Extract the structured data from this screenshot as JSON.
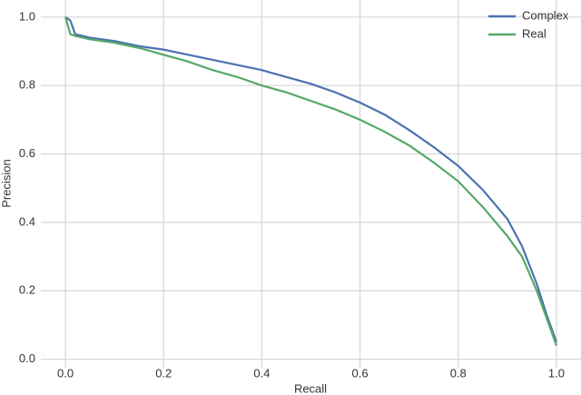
{
  "chart_data": {
    "type": "line",
    "x_label": "Recall",
    "y_label": "Precision",
    "x": [
      0,
      0.01,
      0.02,
      0.05,
      0.1,
      0.15,
      0.2,
      0.25,
      0.3,
      0.35,
      0.4,
      0.45,
      0.5,
      0.55,
      0.6,
      0.65,
      0.7,
      0.75,
      0.8,
      0.85,
      0.9,
      0.93,
      0.96,
      0.98,
      1.0
    ],
    "series": [
      {
        "name": "Complex",
        "color": "#4c72b0",
        "values": [
          1.0,
          0.99,
          0.95,
          0.94,
          0.93,
          0.915,
          0.905,
          0.89,
          0.875,
          0.86,
          0.845,
          0.825,
          0.805,
          0.78,
          0.75,
          0.715,
          0.67,
          0.62,
          0.565,
          0.495,
          0.41,
          0.33,
          0.22,
          0.13,
          0.05
        ]
      },
      {
        "name": "Real",
        "color": "#55a868",
        "values": [
          1.0,
          0.95,
          0.945,
          0.935,
          0.925,
          0.91,
          0.89,
          0.87,
          0.845,
          0.825,
          0.8,
          0.78,
          0.755,
          0.73,
          0.7,
          0.665,
          0.625,
          0.575,
          0.52,
          0.445,
          0.36,
          0.3,
          0.2,
          0.12,
          0.04
        ]
      }
    ],
    "xlim": [
      -0.05,
      1.05
    ],
    "ylim": [
      -0.025,
      1.05
    ],
    "xticks": [
      {
        "value": 0,
        "label": "0.0"
      },
      0.2,
      0.4,
      0.6,
      0.8,
      {
        "value": 1,
        "label": "1.0"
      }
    ],
    "yticks": [
      {
        "value": 0,
        "label": "0.0"
      },
      0.2,
      0.4,
      0.6,
      0.8,
      {
        "value": 1,
        "label": "1.0"
      }
    ],
    "grid": true,
    "legend": "upper-right"
  }
}
